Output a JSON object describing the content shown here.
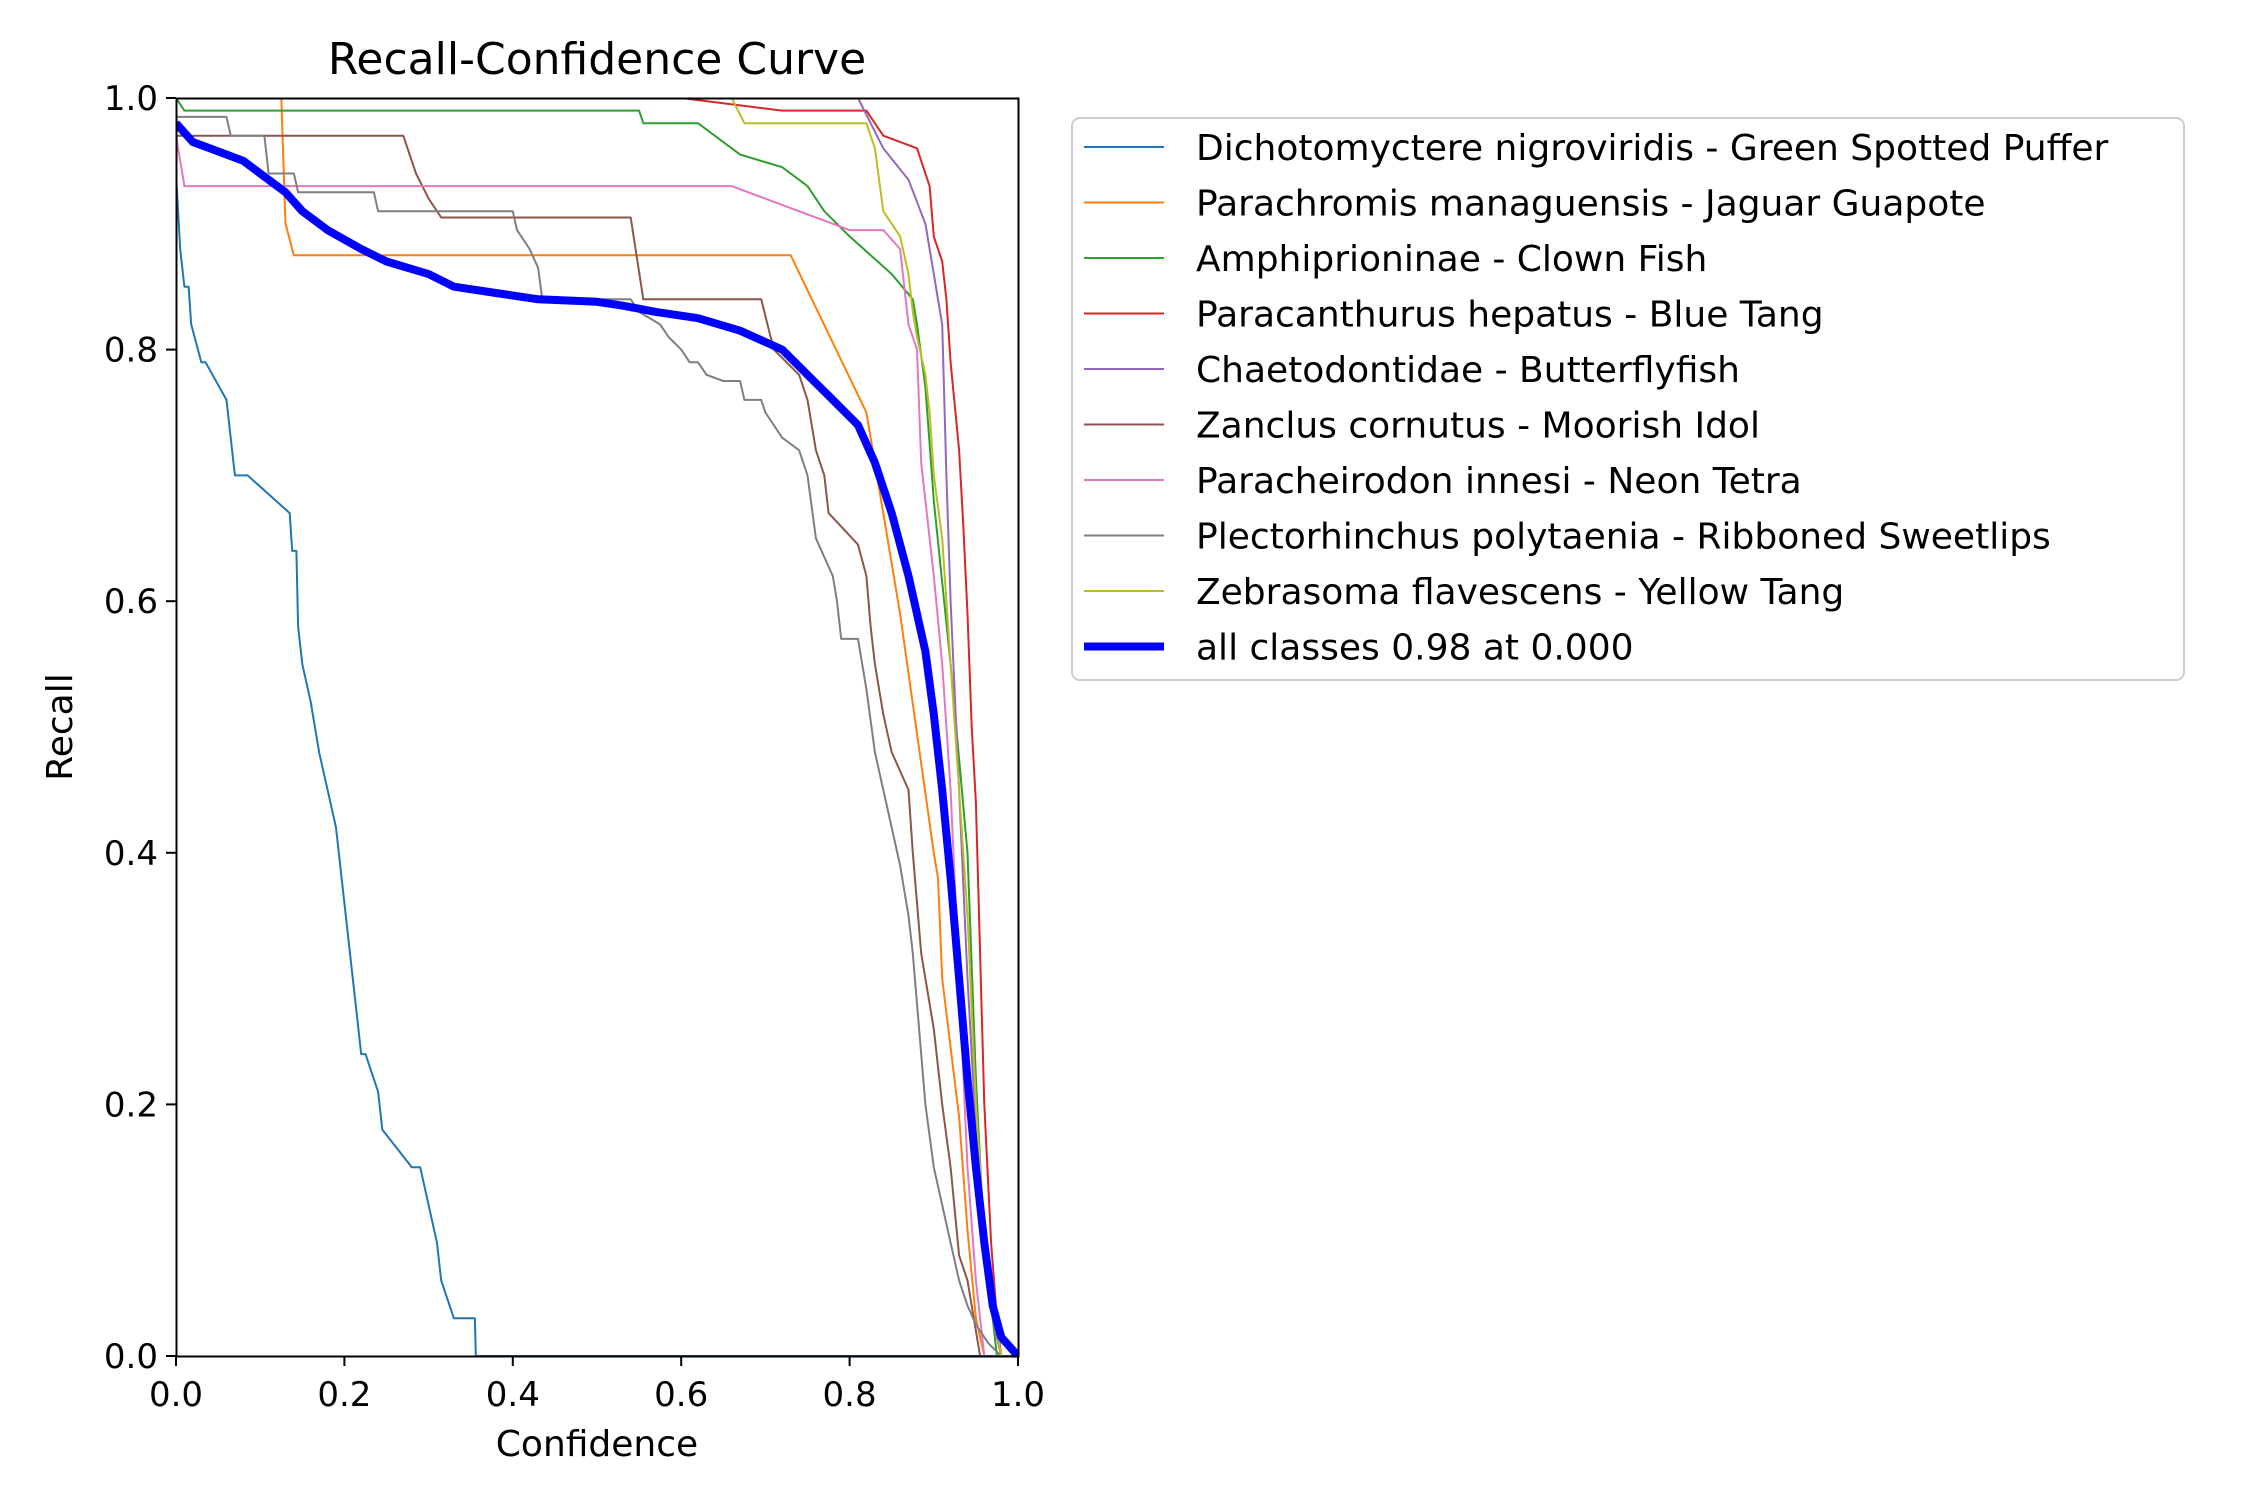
{
  "chart_data": {
    "type": "line",
    "title": "Recall-Confidence Curve",
    "xlabel": "Confidence",
    "ylabel": "Recall",
    "xlim": [
      0,
      1
    ],
    "ylim": [
      0,
      1
    ],
    "xticks": [
      "0.0",
      "0.2",
      "0.4",
      "0.6",
      "0.8",
      "1.0"
    ],
    "yticks": [
      "0.0",
      "0.2",
      "0.4",
      "0.6",
      "0.8",
      "1.0"
    ],
    "grid": false,
    "legend_position": "outside-right",
    "series": [
      {
        "name": "Dichotomyctere nigroviridis - Green Spotted Puffer",
        "color": "#1f77b4",
        "width": 2,
        "points": [
          [
            0,
            0.94
          ],
          [
            0.005,
            0.88
          ],
          [
            0.01,
            0.85
          ],
          [
            0.015,
            0.85
          ],
          [
            0.018,
            0.82
          ],
          [
            0.03,
            0.79
          ],
          [
            0.035,
            0.79
          ],
          [
            0.06,
            0.76
          ],
          [
            0.065,
            0.73
          ],
          [
            0.07,
            0.7
          ],
          [
            0.085,
            0.7
          ],
          [
            0.135,
            0.67
          ],
          [
            0.138,
            0.64
          ],
          [
            0.143,
            0.64
          ],
          [
            0.145,
            0.58
          ],
          [
            0.15,
            0.55
          ],
          [
            0.16,
            0.52
          ],
          [
            0.17,
            0.48
          ],
          [
            0.18,
            0.45
          ],
          [
            0.19,
            0.42
          ],
          [
            0.195,
            0.39
          ],
          [
            0.2,
            0.36
          ],
          [
            0.205,
            0.33
          ],
          [
            0.21,
            0.3
          ],
          [
            0.215,
            0.27
          ],
          [
            0.22,
            0.24
          ],
          [
            0.225,
            0.24
          ],
          [
            0.24,
            0.21
          ],
          [
            0.245,
            0.18
          ],
          [
            0.28,
            0.15
          ],
          [
            0.29,
            0.15
          ],
          [
            0.3,
            0.12
          ],
          [
            0.31,
            0.09
          ],
          [
            0.315,
            0.06
          ],
          [
            0.33,
            0.03
          ],
          [
            0.355,
            0.03
          ],
          [
            0.356,
            0
          ],
          [
            1,
            0
          ]
        ]
      },
      {
        "name": "Parachromis managuensis - Jaguar Guapote",
        "color": "#ff7f0e",
        "width": 2,
        "points": [
          [
            0,
            1.0
          ],
          [
            0.125,
            1.0
          ],
          [
            0.13,
            0.9
          ],
          [
            0.14,
            0.875
          ],
          [
            0.73,
            0.875
          ],
          [
            0.82,
            0.75
          ],
          [
            0.86,
            0.59
          ],
          [
            0.9,
            0.4
          ],
          [
            0.905,
            0.38
          ],
          [
            0.91,
            0.3
          ],
          [
            0.93,
            0.19
          ],
          [
            0.94,
            0.1
          ],
          [
            0.95,
            0.03
          ],
          [
            0.96,
            0
          ]
        ]
      },
      {
        "name": "Amphiprioninae - Clown Fish",
        "color": "#2ca02c",
        "width": 2,
        "points": [
          [
            0,
            1.0
          ],
          [
            0.01,
            0.99
          ],
          [
            0.55,
            0.99
          ],
          [
            0.555,
            0.98
          ],
          [
            0.62,
            0.98
          ],
          [
            0.67,
            0.955
          ],
          [
            0.72,
            0.945
          ],
          [
            0.75,
            0.93
          ],
          [
            0.77,
            0.91
          ],
          [
            0.8,
            0.89
          ],
          [
            0.85,
            0.86
          ],
          [
            0.875,
            0.84
          ],
          [
            0.88,
            0.82
          ],
          [
            0.89,
            0.77
          ],
          [
            0.9,
            0.68
          ],
          [
            0.92,
            0.55
          ],
          [
            0.94,
            0.4
          ],
          [
            0.95,
            0.22
          ],
          [
            0.96,
            0.09
          ],
          [
            0.975,
            0
          ]
        ]
      },
      {
        "name": "Paracanthurus hepatus - Blue Tang",
        "color": "#d62728",
        "width": 2,
        "points": [
          [
            0.6,
            1.0
          ],
          [
            0.72,
            0.99
          ],
          [
            0.82,
            0.99
          ],
          [
            0.84,
            0.97
          ],
          [
            0.88,
            0.96
          ],
          [
            0.895,
            0.93
          ],
          [
            0.9,
            0.89
          ],
          [
            0.91,
            0.87
          ],
          [
            0.915,
            0.84
          ],
          [
            0.92,
            0.79
          ],
          [
            0.93,
            0.72
          ],
          [
            0.935,
            0.66
          ],
          [
            0.94,
            0.59
          ],
          [
            0.945,
            0.5
          ],
          [
            0.95,
            0.44
          ],
          [
            0.955,
            0.32
          ],
          [
            0.96,
            0.2
          ],
          [
            0.968,
            0.09
          ],
          [
            0.975,
            0.03
          ],
          [
            0.98,
            0
          ]
        ]
      },
      {
        "name": "Chaetodontidae - Butterflyfish",
        "color": "#9467bd",
        "width": 2,
        "points": [
          [
            0.81,
            1.0
          ],
          [
            0.84,
            0.96
          ],
          [
            0.87,
            0.935
          ],
          [
            0.89,
            0.9
          ],
          [
            0.9,
            0.86
          ],
          [
            0.905,
            0.84
          ],
          [
            0.91,
            0.82
          ],
          [
            0.915,
            0.7
          ],
          [
            0.92,
            0.6
          ],
          [
            0.93,
            0.45
          ],
          [
            0.94,
            0.3
          ],
          [
            0.95,
            0.18
          ],
          [
            0.96,
            0.09
          ],
          [
            0.97,
            0.03
          ],
          [
            0.98,
            0
          ]
        ]
      },
      {
        "name": "Zanclus cornutus - Moorish Idol",
        "color": "#8c564b",
        "width": 2,
        "points": [
          [
            0,
            0.97
          ],
          [
            0.27,
            0.97
          ],
          [
            0.285,
            0.94
          ],
          [
            0.3,
            0.92
          ],
          [
            0.315,
            0.905
          ],
          [
            0.54,
            0.905
          ],
          [
            0.555,
            0.84
          ],
          [
            0.695,
            0.84
          ],
          [
            0.71,
            0.8
          ],
          [
            0.74,
            0.78
          ],
          [
            0.75,
            0.76
          ],
          [
            0.76,
            0.72
          ],
          [
            0.77,
            0.7
          ],
          [
            0.775,
            0.67
          ],
          [
            0.81,
            0.645
          ],
          [
            0.82,
            0.62
          ],
          [
            0.825,
            0.58
          ],
          [
            0.83,
            0.55
          ],
          [
            0.84,
            0.51
          ],
          [
            0.85,
            0.48
          ],
          [
            0.87,
            0.45
          ],
          [
            0.875,
            0.4
          ],
          [
            0.88,
            0.36
          ],
          [
            0.885,
            0.32
          ],
          [
            0.89,
            0.3
          ],
          [
            0.9,
            0.26
          ],
          [
            0.91,
            0.2
          ],
          [
            0.92,
            0.15
          ],
          [
            0.93,
            0.08
          ],
          [
            0.94,
            0.06
          ],
          [
            0.95,
            0.02
          ],
          [
            0.955,
            0
          ]
        ]
      },
      {
        "name": "Paracheirodon innesi - Neon Tetra",
        "color": "#e377c2",
        "width": 2,
        "points": [
          [
            0,
            0.97
          ],
          [
            0.01,
            0.93
          ],
          [
            0.66,
            0.93
          ],
          [
            0.8,
            0.895
          ],
          [
            0.84,
            0.895
          ],
          [
            0.86,
            0.88
          ],
          [
            0.87,
            0.82
          ],
          [
            0.88,
            0.8
          ],
          [
            0.885,
            0.71
          ],
          [
            0.9,
            0.62
          ],
          [
            0.91,
            0.55
          ],
          [
            0.92,
            0.45
          ],
          [
            0.93,
            0.3
          ],
          [
            0.94,
            0.15
          ],
          [
            0.95,
            0.06
          ],
          [
            0.96,
            0
          ]
        ]
      },
      {
        "name": "Plectorhinchus polytaenia - Ribboned Sweetlips",
        "color": "#7f7f7f",
        "width": 2,
        "points": [
          [
            0,
            0.985
          ],
          [
            0.06,
            0.985
          ],
          [
            0.065,
            0.97
          ],
          [
            0.105,
            0.97
          ],
          [
            0.11,
            0.94
          ],
          [
            0.14,
            0.94
          ],
          [
            0.145,
            0.925
          ],
          [
            0.235,
            0.925
          ],
          [
            0.24,
            0.91
          ],
          [
            0.4,
            0.91
          ],
          [
            0.405,
            0.895
          ],
          [
            0.42,
            0.88
          ],
          [
            0.43,
            0.865
          ],
          [
            0.435,
            0.84
          ],
          [
            0.54,
            0.84
          ],
          [
            0.55,
            0.83
          ],
          [
            0.575,
            0.82
          ],
          [
            0.585,
            0.81
          ],
          [
            0.6,
            0.8
          ],
          [
            0.61,
            0.79
          ],
          [
            0.62,
            0.79
          ],
          [
            0.63,
            0.78
          ],
          [
            0.65,
            0.775
          ],
          [
            0.67,
            0.775
          ],
          [
            0.675,
            0.76
          ],
          [
            0.695,
            0.76
          ],
          [
            0.7,
            0.75
          ],
          [
            0.72,
            0.73
          ],
          [
            0.74,
            0.72
          ],
          [
            0.75,
            0.7
          ],
          [
            0.76,
            0.65
          ],
          [
            0.78,
            0.62
          ],
          [
            0.785,
            0.6
          ],
          [
            0.79,
            0.57
          ],
          [
            0.81,
            0.57
          ],
          [
            0.82,
            0.53
          ],
          [
            0.83,
            0.48
          ],
          [
            0.84,
            0.45
          ],
          [
            0.85,
            0.42
          ],
          [
            0.86,
            0.39
          ],
          [
            0.87,
            0.35
          ],
          [
            0.875,
            0.32
          ],
          [
            0.88,
            0.28
          ],
          [
            0.885,
            0.24
          ],
          [
            0.89,
            0.2
          ],
          [
            0.9,
            0.15
          ],
          [
            0.91,
            0.12
          ],
          [
            0.92,
            0.09
          ],
          [
            0.93,
            0.06
          ],
          [
            0.94,
            0.04
          ],
          [
            0.95,
            0.025
          ],
          [
            0.965,
            0.01
          ],
          [
            0.98,
            0
          ]
        ]
      },
      {
        "name": "Zebrasoma flavescens - Yellow Tang",
        "color": "#bcbd22",
        "width": 2,
        "points": [
          [
            0.66,
            1.0
          ],
          [
            0.675,
            0.98
          ],
          [
            0.82,
            0.98
          ],
          [
            0.83,
            0.96
          ],
          [
            0.84,
            0.91
          ],
          [
            0.86,
            0.89
          ],
          [
            0.87,
            0.86
          ],
          [
            0.875,
            0.83
          ],
          [
            0.88,
            0.81
          ],
          [
            0.89,
            0.78
          ],
          [
            0.895,
            0.75
          ],
          [
            0.9,
            0.7
          ],
          [
            0.91,
            0.65
          ],
          [
            0.92,
            0.55
          ],
          [
            0.93,
            0.45
          ],
          [
            0.94,
            0.35
          ],
          [
            0.95,
            0.2
          ],
          [
            0.96,
            0.1
          ],
          [
            0.97,
            0.04
          ],
          [
            0.98,
            0
          ]
        ]
      },
      {
        "name": "all classes 0.98 at 0.000",
        "color": "#0000ff",
        "width": 8,
        "points": [
          [
            0,
            0.98
          ],
          [
            0.02,
            0.965
          ],
          [
            0.04,
            0.96
          ],
          [
            0.08,
            0.95
          ],
          [
            0.1,
            0.94
          ],
          [
            0.13,
            0.925
          ],
          [
            0.15,
            0.91
          ],
          [
            0.18,
            0.895
          ],
          [
            0.22,
            0.88
          ],
          [
            0.25,
            0.87
          ],
          [
            0.3,
            0.86
          ],
          [
            0.33,
            0.85
          ],
          [
            0.38,
            0.845
          ],
          [
            0.43,
            0.84
          ],
          [
            0.5,
            0.838
          ],
          [
            0.53,
            0.835
          ],
          [
            0.57,
            0.83
          ],
          [
            0.62,
            0.825
          ],
          [
            0.67,
            0.815
          ],
          [
            0.72,
            0.8
          ],
          [
            0.75,
            0.78
          ],
          [
            0.78,
            0.76
          ],
          [
            0.81,
            0.74
          ],
          [
            0.83,
            0.71
          ],
          [
            0.85,
            0.67
          ],
          [
            0.87,
            0.62
          ],
          [
            0.89,
            0.56
          ],
          [
            0.9,
            0.51
          ],
          [
            0.91,
            0.45
          ],
          [
            0.92,
            0.38
          ],
          [
            0.93,
            0.3
          ],
          [
            0.94,
            0.22
          ],
          [
            0.95,
            0.15
          ],
          [
            0.96,
            0.09
          ],
          [
            0.97,
            0.04
          ],
          [
            0.98,
            0.015
          ],
          [
            1.0,
            0
          ]
        ]
      }
    ]
  }
}
